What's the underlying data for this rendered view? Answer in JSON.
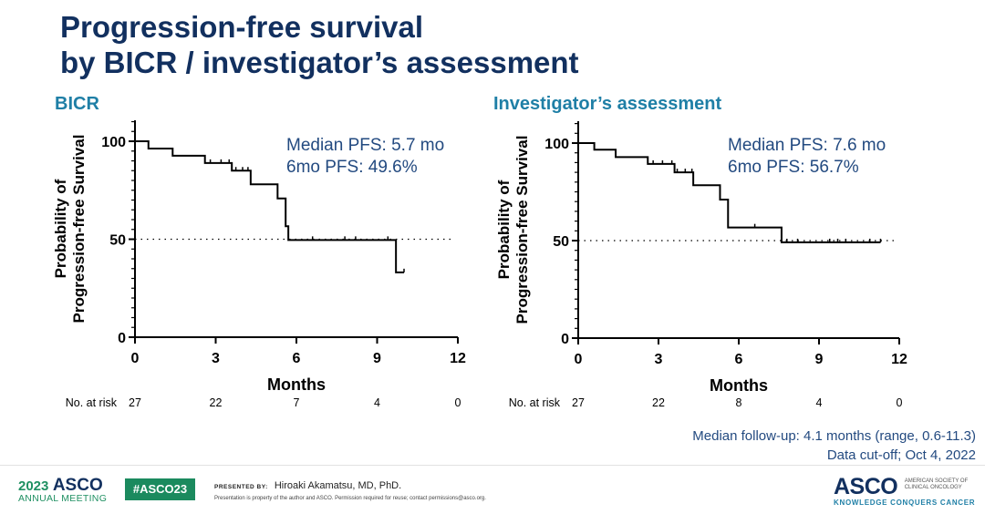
{
  "title": {
    "line1": "Progression-free survival",
    "line2": "by BICR / investigator’s assessment"
  },
  "chart_data": [
    {
      "type": "line",
      "subtype": "kaplan-meier-step",
      "title": "BICR",
      "xlabel": "Months",
      "ylabel_line1": "Probability of",
      "ylabel_line2": "Progression-free Survival",
      "xlim": [
        0,
        12
      ],
      "ylim": [
        0,
        100
      ],
      "xticks": [
        "0",
        "3",
        "6",
        "9",
        "12"
      ],
      "yticks": [
        "0",
        "50",
        "100"
      ],
      "reference_line_y": 50,
      "grid": false,
      "color": "#000000",
      "steps": [
        [
          0,
          100
        ],
        [
          0.5,
          96.3
        ],
        [
          1.4,
          92.6
        ],
        [
          2.6,
          88.9
        ],
        [
          3.6,
          85.0
        ],
        [
          4.3,
          78.0
        ],
        [
          5.3,
          70.8
        ],
        [
          5.6,
          56.6
        ],
        [
          5.7,
          49.6
        ],
        [
          9.7,
          33.1
        ]
      ],
      "end_x": 10.0,
      "censored_x": [
        2.8,
        3.2,
        3.5,
        3.75,
        4.0,
        4.2,
        6.6,
        7.8,
        8.2,
        9.4,
        10.0
      ],
      "annotations": {
        "median": "Median PFS: 5.7 mo",
        "six_month": "6mo PFS: 49.6%"
      },
      "at_risk": {
        "label": "No. at risk",
        "values": [
          "27",
          "22",
          "7",
          "4",
          "0"
        ]
      }
    },
    {
      "type": "line",
      "subtype": "kaplan-meier-step",
      "title": "Investigator’s assessment",
      "xlabel": "Months",
      "ylabel_line1": "Probability of",
      "ylabel_line2": "Progression-free Survival",
      "xlim": [
        0,
        12
      ],
      "ylim": [
        0,
        100
      ],
      "xticks": [
        "0",
        "3",
        "6",
        "9",
        "12"
      ],
      "yticks": [
        "0",
        "50",
        "100"
      ],
      "reference_line_y": 50,
      "grid": false,
      "color": "#000000",
      "steps": [
        [
          0,
          100
        ],
        [
          0.6,
          96.6
        ],
        [
          1.4,
          92.8
        ],
        [
          2.6,
          89.3
        ],
        [
          3.6,
          85.0
        ],
        [
          4.3,
          78.4
        ],
        [
          5.3,
          71.0
        ],
        [
          5.6,
          56.7
        ],
        [
          7.6,
          49.1
        ]
      ],
      "end_x": 11.3,
      "censored_x": [
        2.8,
        3.15,
        3.5,
        3.7,
        4.0,
        4.25,
        6.6,
        7.8,
        8.2,
        9.4,
        9.7,
        10.0,
        10.9,
        11.3
      ],
      "annotations": {
        "median": "Median PFS: 7.6 mo",
        "six_month": "6mo PFS: 56.7%"
      },
      "at_risk": {
        "label": "No. at risk",
        "values": [
          "27",
          "22",
          "8",
          "4",
          "0"
        ]
      }
    }
  ],
  "followup": {
    "line1": "Median follow-up: 4.1 months (range, 0.6-11.3)",
    "line2": "Data cut-off; Oct 4, 2022"
  },
  "footer": {
    "meeting_year": "2023",
    "meeting_brand": "ASCO",
    "meeting_name": "ANNUAL MEETING",
    "hashtag": "#ASCO23",
    "presented_by_label": "PRESENTED BY:",
    "presenter": "Hiroaki Akamatsu, MD, PhD.",
    "rights": "Presentation is property of the author and ASCO. Permission required for reuse; contact permissions@asco.org.",
    "org_brand": "ASCO",
    "org_name_line1": "AMERICAN SOCIETY OF",
    "org_name_line2": "CLINICAL ONCOLOGY",
    "tagline": "KNOWLEDGE CONQUERS CANCER"
  },
  "colors": {
    "title": "#12305f",
    "subtitle": "#1f7fa6",
    "annotation": "#234a80",
    "brand_green": "#1b8a5e"
  }
}
